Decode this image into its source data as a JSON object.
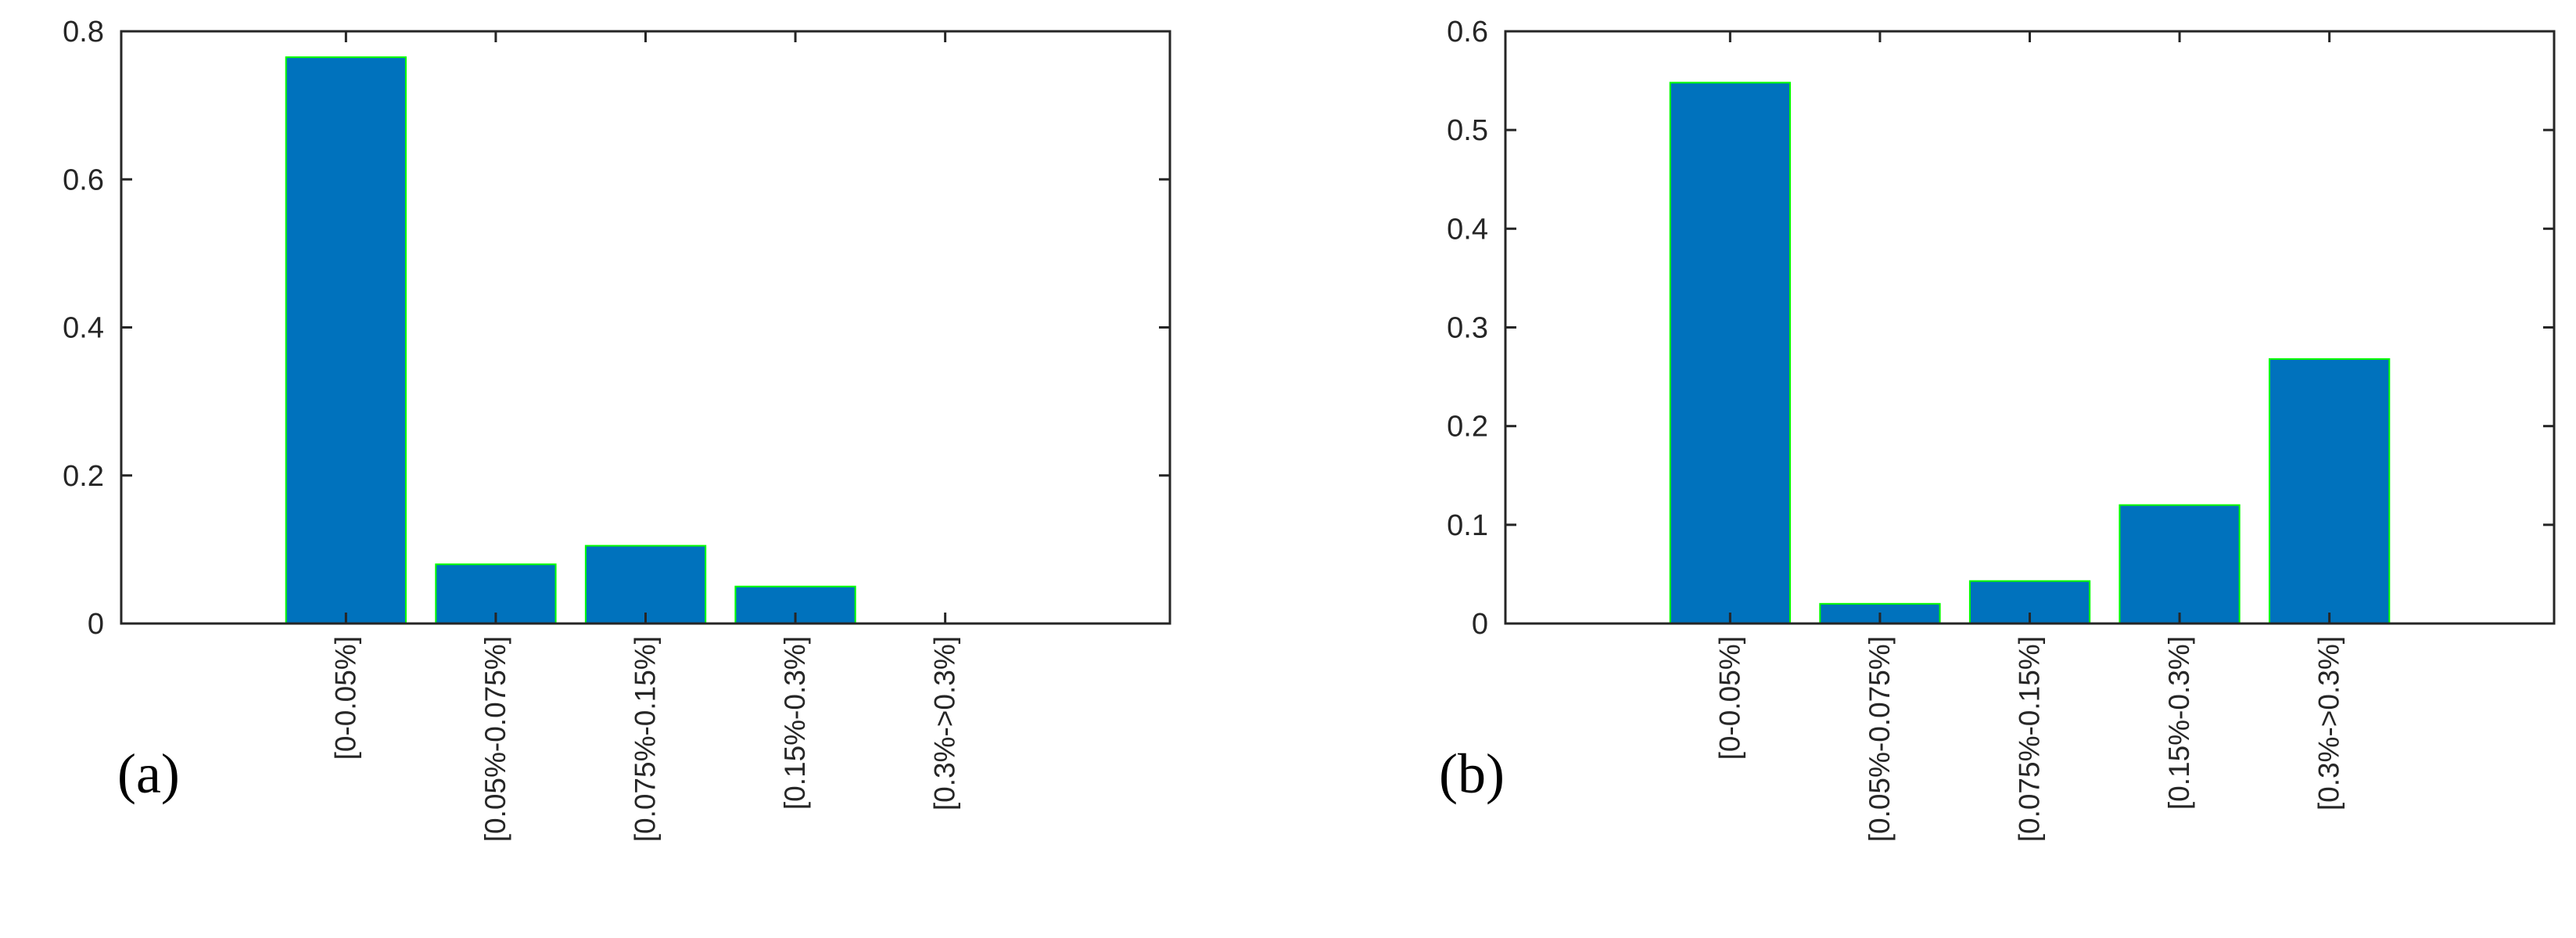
{
  "colors": {
    "bar_fill": "#0072bd",
    "bar_edge": "#00ff00",
    "axes": "#262626",
    "background": "#ffffff"
  },
  "chart_data": [
    {
      "type": "bar",
      "panel_label": "(a)",
      "categories": [
        "[0-0.05%]",
        "[0.05%-0.075%]",
        "[0.075%-0.15%]",
        "[0.15%-0.3%]",
        "[0.3%->0.3%]"
      ],
      "values": [
        0.765,
        0.08,
        0.105,
        0.05,
        0
      ],
      "ylim": [
        0,
        0.8
      ],
      "yticks": [
        0,
        0.2,
        0.4,
        0.6,
        0.8
      ],
      "ytick_labels": [
        "0",
        "0.2",
        "0.4",
        "0.6",
        "0.8"
      ],
      "title": "",
      "xlabel": "",
      "ylabel": "",
      "grid": false,
      "legend": "none"
    },
    {
      "type": "bar",
      "panel_label": "(b)",
      "categories": [
        "[0-0.05%]",
        "[0.05%-0.075%]",
        "[0.075%-0.15%]",
        "[0.15%-0.3%]",
        "[0.3%->0.3%]"
      ],
      "values": [
        0.548,
        0.02,
        0.043,
        0.12,
        0.268
      ],
      "ylim": [
        0,
        0.6
      ],
      "yticks": [
        0,
        0.1,
        0.2,
        0.3,
        0.4,
        0.5,
        0.6
      ],
      "ytick_labels": [
        "0",
        "0.1",
        "0.2",
        "0.3",
        "0.4",
        "0.5",
        "0.6"
      ],
      "title": "",
      "xlabel": "",
      "ylabel": "",
      "grid": false,
      "legend": "none"
    }
  ]
}
